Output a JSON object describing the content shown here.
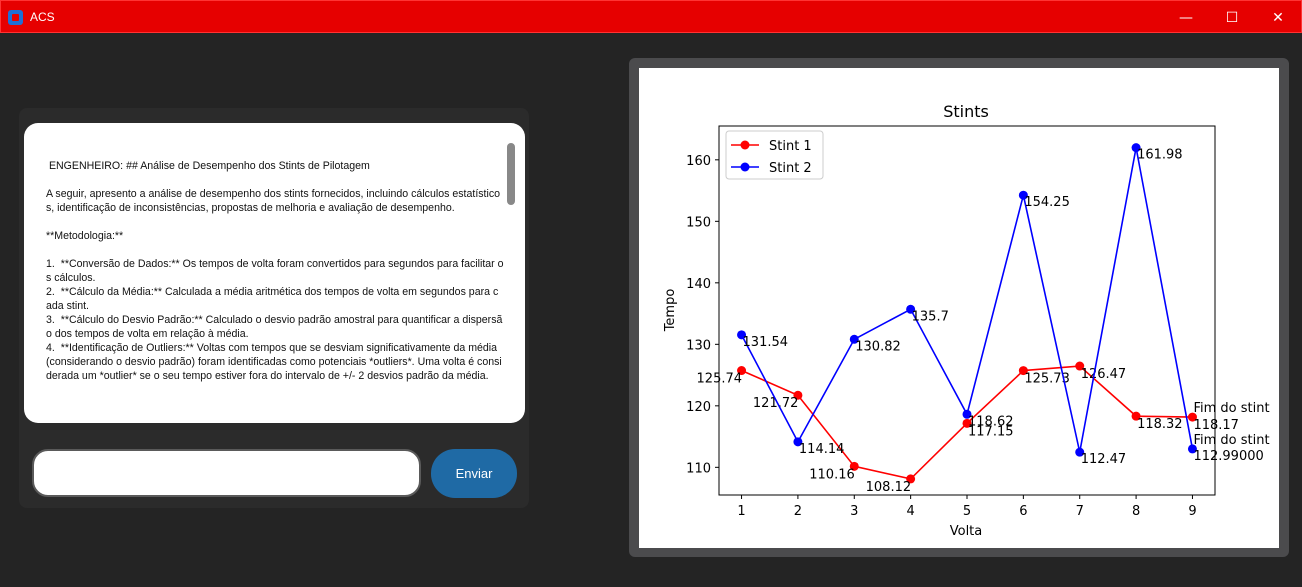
{
  "window": {
    "title": "ACS",
    "min_glyph": "—",
    "max_glyph": "☐",
    "close_glyph": "✕"
  },
  "chat": {
    "text": " ENGENHEIRO: ## Análise de Desempenho dos Stints de Pilotagem\n\nA seguir, apresento a análise de desempenho dos stints fornecidos, incluindo cálculos estatísticos, identificação de inconsistências, propostas de melhoria e avaliação de desempenho.\n\n**Metodologia:**\n\n1.  **Conversão de Dados:** Os tempos de volta foram convertidos para segundos para facilitar os cálculos.\n2.  **Cálculo da Média:** Calculada a média aritmética dos tempos de volta em segundos para cada stint.\n3.  **Cálculo do Desvio Padrão:** Calculado o desvio padrão amostral para quantificar a dispersão dos tempos de volta em relação à média.\n4.  **Identificação de Outliers:** Voltas com tempos que se desviam significativamente da média (considerando o desvio padrão) foram identificadas como potenciais *outliers*. Uma volta é considerada um *outlier* se o seu tempo estiver fora do intervalo de +/- 2 desvios padrão da média.",
    "input_value": "",
    "send_label": "Enviar"
  },
  "chart_data": {
    "type": "line",
    "title": "Stints",
    "xlabel": "Volta",
    "ylabel": "Tempo",
    "x": [
      1,
      2,
      3,
      4,
      5,
      6,
      7,
      8,
      9
    ],
    "xlim": [
      0.6,
      9.4
    ],
    "ylim": [
      105.5,
      165.5
    ],
    "yticks": [
      110,
      120,
      130,
      140,
      150,
      160
    ],
    "legend": "upper-left",
    "series": [
      {
        "name": "Stint 1",
        "color": "#ff0000",
        "values": [
          125.74,
          121.72,
          110.16,
          108.12,
          117.15,
          125.73,
          126.47,
          118.32,
          118.17
        ],
        "labels": [
          "125.74",
          "121.72",
          "110.16",
          "108.12",
          "117.15",
          "125.73",
          "126.47",
          "118.32",
          "118.17"
        ],
        "end_label": "Fim do stint"
      },
      {
        "name": "Stint 2",
        "color": "#0000ff",
        "values": [
          131.54,
          114.14,
          130.82,
          135.7,
          118.62,
          154.25,
          112.47,
          161.98,
          112.99
        ],
        "labels": [
          "131.54",
          "114.14",
          "130.82",
          "135.7",
          "118.62",
          "154.25",
          "112.47",
          "161.98",
          "112.99000"
        ],
        "end_label": "Fim do stint"
      }
    ]
  }
}
